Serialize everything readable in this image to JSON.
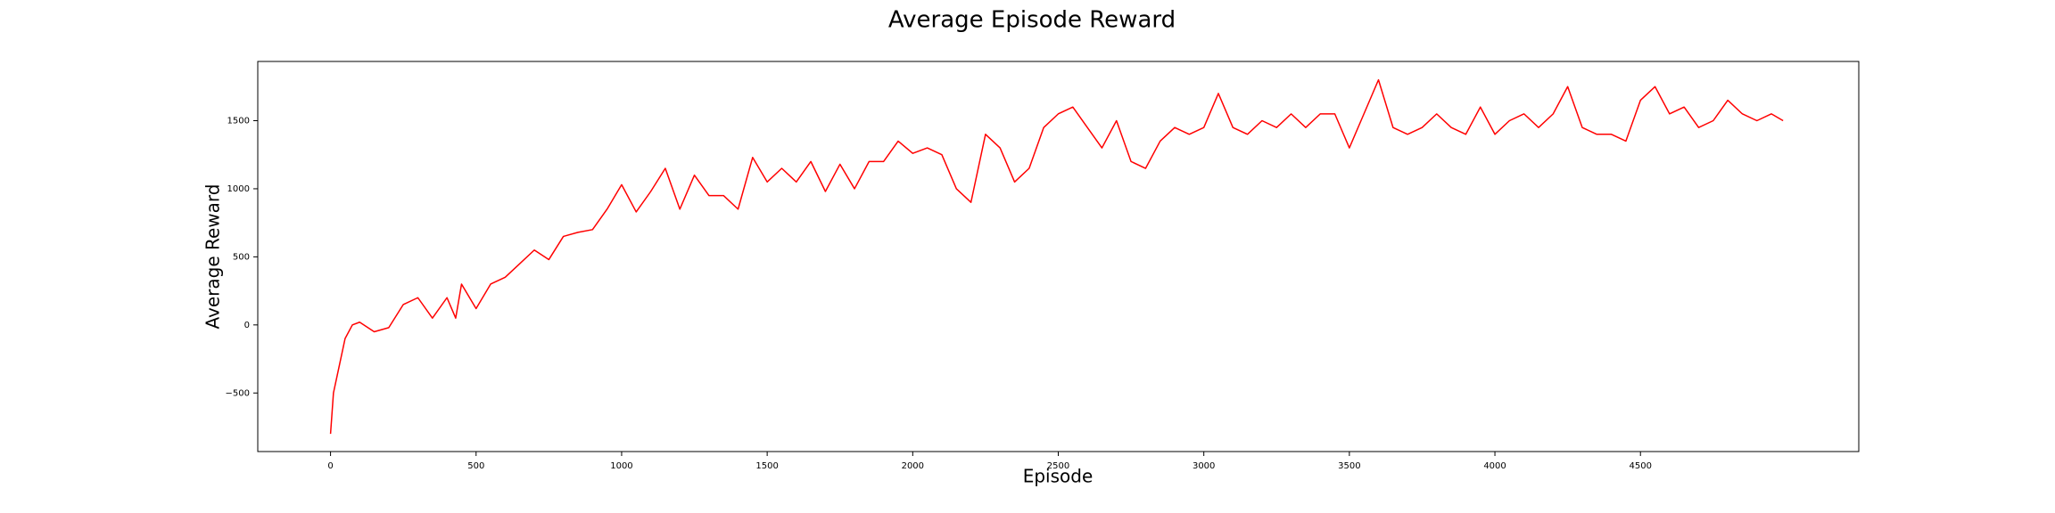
{
  "chart_data": {
    "type": "line",
    "title": "Average Episode Reward",
    "x_label": "Episode",
    "y_label": "Average Reward",
    "x": [
      0,
      10,
      25,
      50,
      75,
      100,
      150,
      200,
      250,
      300,
      350,
      400,
      430,
      450,
      500,
      550,
      600,
      650,
      700,
      750,
      800,
      850,
      900,
      950,
      1000,
      1050,
      1100,
      1150,
      1200,
      1250,
      1300,
      1350,
      1400,
      1450,
      1500,
      1550,
      1600,
      1650,
      1700,
      1750,
      1800,
      1850,
      1900,
      1950,
      2000,
      2050,
      2100,
      2150,
      2200,
      2250,
      2300,
      2350,
      2400,
      2450,
      2500,
      2550,
      2600,
      2650,
      2700,
      2750,
      2800,
      2850,
      2900,
      2950,
      3000,
      3050,
      3100,
      3150,
      3200,
      3250,
      3300,
      3350,
      3400,
      3450,
      3500,
      3550,
      3600,
      3650,
      3700,
      3750,
      3800,
      3850,
      3900,
      3950,
      4000,
      4050,
      4100,
      4150,
      4200,
      4250,
      4300,
      4350,
      4400,
      4450,
      4500,
      4550,
      4600,
      4650,
      4700,
      4750,
      4800,
      4850,
      4900,
      4950,
      4990
    ],
    "values": [
      -800,
      -500,
      -350,
      -100,
      0,
      20,
      -50,
      -20,
      150,
      200,
      50,
      200,
      50,
      300,
      120,
      300,
      350,
      450,
      550,
      480,
      650,
      680,
      700,
      850,
      1030,
      830,
      980,
      1150,
      850,
      1100,
      950,
      950,
      850,
      1230,
      1050,
      1150,
      1050,
      1200,
      980,
      1180,
      1000,
      1200,
      1200,
      1350,
      1260,
      1300,
      1250,
      1000,
      900,
      1400,
      1300,
      1050,
      1150,
      1450,
      1550,
      1600,
      1450,
      1300,
      1500,
      1200,
      1150,
      1350,
      1450,
      1400,
      1450,
      1700,
      1450,
      1400,
      1500,
      1450,
      1550,
      1450,
      1550,
      1550,
      1300,
      1550,
      1800,
      1450,
      1400,
      1450,
      1550,
      1450,
      1400,
      1600,
      1400,
      1500,
      1550,
      1450,
      1550,
      1750,
      1450,
      1400,
      1400,
      1350,
      1650,
      1750,
      1550,
      1600,
      1450,
      1500,
      1650,
      1550,
      1500,
      1550,
      1500
    ],
    "color": "#ff0000",
    "xlim": [
      -250,
      5250
    ],
    "xticks": [
      0,
      500,
      1000,
      1500,
      2000,
      2500,
      3000,
      3500,
      4000,
      4500
    ],
    "ylim": [
      -930,
      1935
    ],
    "yticks": [
      {
        "value": -500,
        "label": "−500"
      },
      0,
      500,
      1000,
      1500
    ],
    "grid": false
  }
}
